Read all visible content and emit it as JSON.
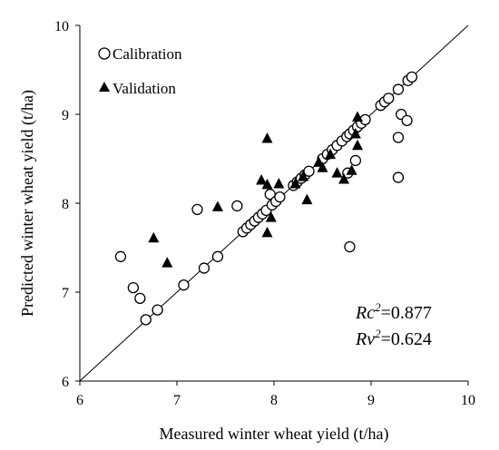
{
  "chart_data": {
    "type": "scatter",
    "xlabel": "Measured winter wheat yield (t/ha)",
    "ylabel": "Predicted winter wheat yield (t/ha)",
    "xlim": [
      6,
      10
    ],
    "ylim": [
      6,
      10
    ],
    "x_ticks": [
      "6",
      "7",
      "8",
      "9",
      "10"
    ],
    "y_ticks": [
      "6",
      "7",
      "8",
      "9",
      "10"
    ],
    "grid": false,
    "legend_position": "top-left",
    "reference_line": "1:1",
    "annotations": {
      "rc_var": "Rc",
      "rc_sup": "2",
      "rc_val": "=0.877",
      "rv_var": "Rv",
      "rv_sup": "2",
      "rv_val": "=0.624"
    },
    "series": [
      {
        "name": "Calibration",
        "marker": "open-circle",
        "points": [
          [
            6.42,
            7.4
          ],
          [
            6.55,
            7.05
          ],
          [
            6.62,
            6.93
          ],
          [
            6.68,
            6.69
          ],
          [
            6.8,
            6.8
          ],
          [
            7.07,
            7.08
          ],
          [
            7.21,
            7.93
          ],
          [
            7.28,
            7.27
          ],
          [
            7.42,
            7.4
          ],
          [
            7.62,
            7.97
          ],
          [
            7.68,
            7.68
          ],
          [
            7.72,
            7.72
          ],
          [
            7.76,
            7.76
          ],
          [
            7.8,
            7.8
          ],
          [
            7.84,
            7.84
          ],
          [
            7.88,
            7.88
          ],
          [
            7.92,
            7.92
          ],
          [
            7.96,
            8.1
          ],
          [
            7.98,
            7.98
          ],
          [
            8.02,
            8.02
          ],
          [
            8.06,
            8.07
          ],
          [
            8.2,
            8.2
          ],
          [
            8.24,
            8.24
          ],
          [
            8.28,
            8.28
          ],
          [
            8.32,
            8.32
          ],
          [
            8.36,
            8.36
          ],
          [
            8.5,
            8.5
          ],
          [
            8.55,
            8.55
          ],
          [
            8.6,
            8.6
          ],
          [
            8.65,
            8.65
          ],
          [
            8.7,
            8.7
          ],
          [
            8.75,
            8.75
          ],
          [
            8.78,
            8.78
          ],
          [
            8.82,
            8.82
          ],
          [
            8.86,
            8.86
          ],
          [
            8.9,
            8.9
          ],
          [
            8.94,
            8.94
          ],
          [
            8.78,
            7.51
          ],
          [
            8.76,
            8.34
          ],
          [
            8.84,
            8.48
          ],
          [
            9.1,
            9.1
          ],
          [
            9.14,
            9.14
          ],
          [
            9.18,
            9.18
          ],
          [
            9.28,
            9.28
          ],
          [
            9.38,
            9.38
          ],
          [
            9.42,
            9.42
          ],
          [
            9.28,
            8.29
          ],
          [
            9.28,
            8.74
          ],
          [
            9.31,
            9.0
          ],
          [
            9.37,
            8.93
          ]
        ]
      },
      {
        "name": "Validation",
        "marker": "filled-triangle",
        "points": [
          [
            6.76,
            7.61
          ],
          [
            6.9,
            7.33
          ],
          [
            7.42,
            7.96
          ],
          [
            7.87,
            8.26
          ],
          [
            7.93,
            8.21
          ],
          [
            7.93,
            8.73
          ],
          [
            7.93,
            7.67
          ],
          [
            7.97,
            7.84
          ],
          [
            8.05,
            8.22
          ],
          [
            8.22,
            8.22
          ],
          [
            8.3,
            8.3
          ],
          [
            8.34,
            8.04
          ],
          [
            8.46,
            8.46
          ],
          [
            8.5,
            8.4
          ],
          [
            8.58,
            8.55
          ],
          [
            8.65,
            8.34
          ],
          [
            8.72,
            8.27
          ],
          [
            8.8,
            8.37
          ],
          [
            8.86,
            8.65
          ],
          [
            8.86,
            8.97
          ],
          [
            8.84,
            8.78
          ]
        ]
      }
    ]
  }
}
